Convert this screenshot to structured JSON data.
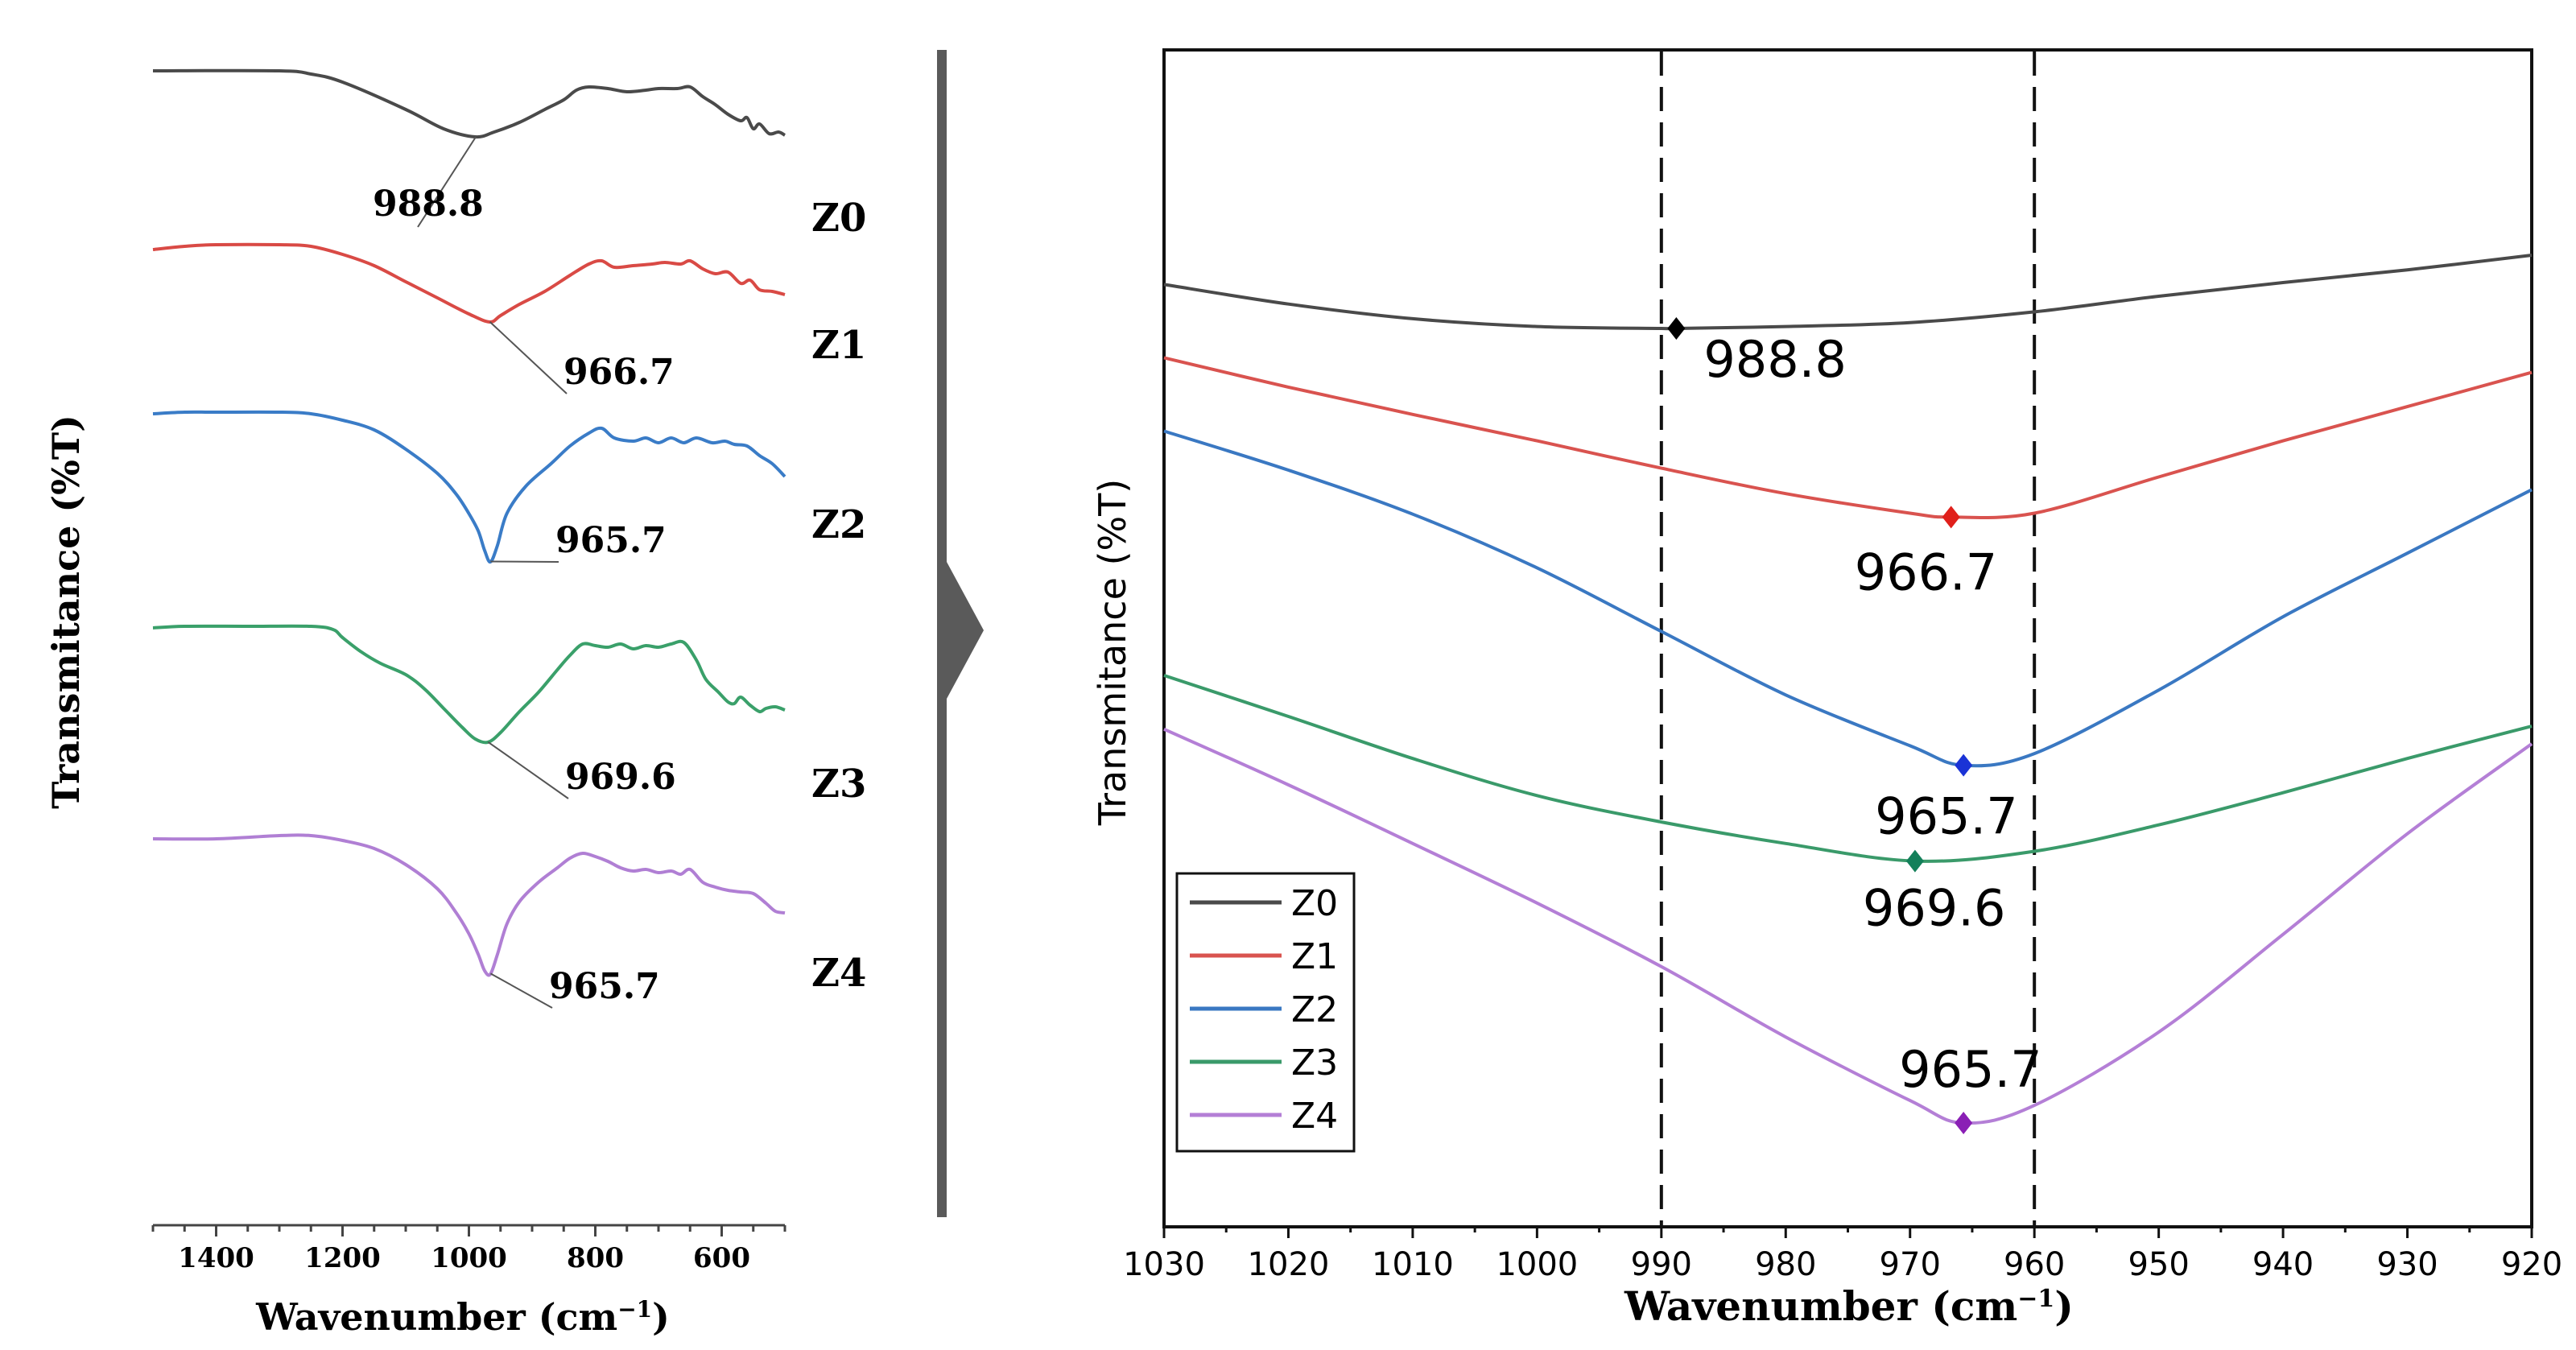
{
  "chart_data": [
    {
      "type": "line",
      "panel": "left",
      "xlabel": "Wavenumber (cm",
      "xlabel_sup": "−1",
      "xlabel_close": ")",
      "ylabel": "Transmitance (%T)",
      "xlim": [
        1500,
        500
      ],
      "x_reversed": true,
      "x_ticks": [
        1400,
        1200,
        1000,
        800,
        600
      ],
      "x_tick_labels": [
        "1400",
        "1200",
        "1000",
        "800",
        "600"
      ],
      "y_axis_values": "none",
      "series": [
        {
          "name": "Z0",
          "color": "#4a4a4a",
          "peak_label": "988.8",
          "peak_x": 988.8,
          "points": [
            [
              1500,
              0
            ],
            [
              1300,
              0
            ],
            [
              1250,
              -4
            ],
            [
              1200,
              -14
            ],
            [
              1100,
              -48
            ],
            [
              1040,
              -72
            ],
            [
              990,
              -82
            ],
            [
              960,
              -76
            ],
            [
              920,
              -64
            ],
            [
              880,
              -48
            ],
            [
              850,
              -36
            ],
            [
              830,
              -24
            ],
            [
              810,
              -20
            ],
            [
              780,
              -22
            ],
            [
              750,
              -26
            ],
            [
              720,
              -24
            ],
            [
              700,
              -22
            ],
            [
              670,
              -22
            ],
            [
              650,
              -20
            ],
            [
              630,
              -32
            ],
            [
              610,
              -42
            ],
            [
              590,
              -54
            ],
            [
              570,
              -62
            ],
            [
              560,
              -58
            ],
            [
              550,
              -72
            ],
            [
              540,
              -66
            ],
            [
              525,
              -78
            ],
            [
              510,
              -76
            ],
            [
              500,
              -80
            ]
          ]
        },
        {
          "name": "Z1",
          "color": "#d94a45",
          "peak_label": "966.7",
          "peak_x": 966.7,
          "points": [
            [
              1500,
              -2
            ],
            [
              1450,
              2
            ],
            [
              1400,
              4
            ],
            [
              1300,
              4
            ],
            [
              1250,
              2
            ],
            [
              1200,
              -8
            ],
            [
              1150,
              -22
            ],
            [
              1100,
              -42
            ],
            [
              1050,
              -62
            ],
            [
              1000,
              -82
            ],
            [
              967,
              -92
            ],
            [
              950,
              -84
            ],
            [
              920,
              -70
            ],
            [
              880,
              -54
            ],
            [
              840,
              -34
            ],
            [
              810,
              -20
            ],
            [
              790,
              -16
            ],
            [
              770,
              -24
            ],
            [
              740,
              -22
            ],
            [
              710,
              -20
            ],
            [
              690,
              -18
            ],
            [
              665,
              -20
            ],
            [
              650,
              -16
            ],
            [
              630,
              -26
            ],
            [
              610,
              -32
            ],
            [
              590,
              -30
            ],
            [
              570,
              -44
            ],
            [
              555,
              -40
            ],
            [
              540,
              -52
            ],
            [
              520,
              -54
            ],
            [
              500,
              -58
            ]
          ]
        },
        {
          "name": "Z2",
          "color": "#3a7cc7",
          "peak_label": "965.7",
          "peak_x": 965.7,
          "points": [
            [
              1500,
              0
            ],
            [
              1450,
              2
            ],
            [
              1400,
              2
            ],
            [
              1300,
              2
            ],
            [
              1250,
              0
            ],
            [
              1200,
              -8
            ],
            [
              1150,
              -20
            ],
            [
              1100,
              -44
            ],
            [
              1050,
              -74
            ],
            [
              1020,
              -100
            ],
            [
              1000,
              -124
            ],
            [
              985,
              -146
            ],
            [
              975,
              -170
            ],
            [
              966,
              -184
            ],
            [
              955,
              -164
            ],
            [
              940,
              -124
            ],
            [
              910,
              -90
            ],
            [
              870,
              -62
            ],
            [
              840,
              -40
            ],
            [
              810,
              -24
            ],
            [
              790,
              -18
            ],
            [
              770,
              -30
            ],
            [
              740,
              -34
            ],
            [
              720,
              -30
            ],
            [
              700,
              -36
            ],
            [
              680,
              -30
            ],
            [
              660,
              -36
            ],
            [
              640,
              -30
            ],
            [
              615,
              -36
            ],
            [
              595,
              -34
            ],
            [
              580,
              -38
            ],
            [
              560,
              -40
            ],
            [
              540,
              -52
            ],
            [
              520,
              -62
            ],
            [
              500,
              -78
            ]
          ]
        },
        {
          "name": "Z3",
          "color": "#3aa06a",
          "peak_label": "969.6",
          "peak_x": 969.6,
          "points": [
            [
              1500,
              0
            ],
            [
              1450,
              2
            ],
            [
              1350,
              2
            ],
            [
              1250,
              2
            ],
            [
              1215,
              -2
            ],
            [
              1200,
              -12
            ],
            [
              1170,
              -30
            ],
            [
              1140,
              -44
            ],
            [
              1100,
              -58
            ],
            [
              1070,
              -76
            ],
            [
              1040,
              -100
            ],
            [
              1010,
              -124
            ],
            [
              990,
              -138
            ],
            [
              970,
              -142
            ],
            [
              950,
              -130
            ],
            [
              920,
              -104
            ],
            [
              890,
              -80
            ],
            [
              860,
              -52
            ],
            [
              840,
              -34
            ],
            [
              820,
              -20
            ],
            [
              800,
              -22
            ],
            [
              780,
              -24
            ],
            [
              760,
              -20
            ],
            [
              740,
              -26
            ],
            [
              720,
              -22
            ],
            [
              700,
              -24
            ],
            [
              680,
              -20
            ],
            [
              660,
              -18
            ],
            [
              640,
              -40
            ],
            [
              625,
              -64
            ],
            [
              605,
              -80
            ],
            [
              590,
              -92
            ],
            [
              580,
              -94
            ],
            [
              570,
              -86
            ],
            [
              555,
              -96
            ],
            [
              540,
              -104
            ],
            [
              530,
              -100
            ],
            [
              515,
              -98
            ],
            [
              500,
              -102
            ]
          ]
        },
        {
          "name": "Z4",
          "color": "#b07fd4",
          "peak_label": "965.7",
          "peak_x": 965.7,
          "points": [
            [
              1500,
              0
            ],
            [
              1400,
              0
            ],
            [
              1300,
              4
            ],
            [
              1250,
              4
            ],
            [
              1200,
              -2
            ],
            [
              1150,
              -12
            ],
            [
              1100,
              -32
            ],
            [
              1050,
              -62
            ],
            [
              1020,
              -92
            ],
            [
              1000,
              -118
            ],
            [
              985,
              -144
            ],
            [
              975,
              -164
            ],
            [
              966,
              -168
            ],
            [
              955,
              -144
            ],
            [
              940,
              -106
            ],
            [
              920,
              -78
            ],
            [
              890,
              -54
            ],
            [
              860,
              -36
            ],
            [
              840,
              -24
            ],
            [
              820,
              -18
            ],
            [
              800,
              -22
            ],
            [
              780,
              -28
            ],
            [
              760,
              -36
            ],
            [
              740,
              -40
            ],
            [
              720,
              -38
            ],
            [
              700,
              -42
            ],
            [
              680,
              -40
            ],
            [
              665,
              -44
            ],
            [
              650,
              -38
            ],
            [
              630,
              -54
            ],
            [
              610,
              -60
            ],
            [
              590,
              -64
            ],
            [
              570,
              -66
            ],
            [
              550,
              -68
            ],
            [
              530,
              -80
            ],
            [
              515,
              -90
            ],
            [
              500,
              -92
            ]
          ]
        }
      ]
    },
    {
      "type": "line",
      "panel": "right",
      "xlabel": "Wavenumber (cm",
      "xlabel_sup": "−1",
      "xlabel_close": ")",
      "ylabel": "Transmitance (%T)",
      "xlim": [
        1030,
        920
      ],
      "x_reversed": true,
      "x_ticks": [
        1030,
        1020,
        1010,
        1000,
        990,
        980,
        970,
        960,
        950,
        940,
        930,
        920
      ],
      "x_tick_labels": [
        "1030",
        "1020",
        "1010",
        "1000",
        "990",
        "980",
        "970",
        "960",
        "950",
        "940",
        "930",
        "920"
      ],
      "y_axis_values": "none",
      "vertical_dashed_lines": [
        990,
        960
      ],
      "legend": {
        "position": "bottom-left",
        "entries": [
          "Z0",
          "Z1",
          "Z2",
          "Z3",
          "Z4"
        ]
      },
      "series": [
        {
          "name": "Z0",
          "color": "#4a4a4a",
          "marker_color": "#000000",
          "peak_label": "988.8",
          "peak_x": 988.8,
          "points": [
            [
              1030,
              6.2
            ],
            [
              1020,
              6.0
            ],
            [
              1010,
              5.85
            ],
            [
              1000,
              5.77
            ],
            [
              990,
              5.75
            ],
            [
              988.8,
              5.75
            ],
            [
              980,
              5.77
            ],
            [
              970,
              5.81
            ],
            [
              960,
              5.92
            ],
            [
              950,
              6.08
            ],
            [
              940,
              6.22
            ],
            [
              930,
              6.35
            ],
            [
              920,
              6.5
            ]
          ]
        },
        {
          "name": "Z1",
          "color": "#d9534f",
          "marker_color": "#e0201b",
          "peak_label": "966.7",
          "peak_x": 966.7,
          "points": [
            [
              1030,
              5.45
            ],
            [
              1020,
              5.15
            ],
            [
              1010,
              4.87
            ],
            [
              1000,
              4.6
            ],
            [
              990,
              4.32
            ],
            [
              980,
              4.06
            ],
            [
              970,
              3.86
            ],
            [
              966.7,
              3.82
            ],
            [
              960,
              3.86
            ],
            [
              950,
              4.23
            ],
            [
              940,
              4.6
            ],
            [
              930,
              4.95
            ],
            [
              920,
              5.3
            ]
          ]
        },
        {
          "name": "Z2",
          "color": "#3a78c2",
          "marker_color": "#1a33d6",
          "peak_label": "965.7",
          "peak_x": 965.7,
          "points": [
            [
              1030,
              4.7
            ],
            [
              1020,
              4.3
            ],
            [
              1010,
              3.85
            ],
            [
              1000,
              3.3
            ],
            [
              990,
              2.65
            ],
            [
              980,
              2.0
            ],
            [
              970,
              1.48
            ],
            [
              965.7,
              1.28
            ],
            [
              960,
              1.4
            ],
            [
              950,
              2.05
            ],
            [
              940,
              2.8
            ],
            [
              930,
              3.45
            ],
            [
              920,
              4.1
            ]
          ]
        },
        {
          "name": "Z3",
          "color": "#3a9a6a",
          "marker_color": "#14805a",
          "peak_label": "969.6",
          "peak_x": 969.6,
          "points": [
            [
              1030,
              2.2
            ],
            [
              1020,
              1.78
            ],
            [
              1010,
              1.35
            ],
            [
              1000,
              0.97
            ],
            [
              990,
              0.7
            ],
            [
              980,
              0.48
            ],
            [
              969.6,
              0.3
            ],
            [
              960,
              0.4
            ],
            [
              950,
              0.67
            ],
            [
              940,
              1.0
            ],
            [
              930,
              1.35
            ],
            [
              920,
              1.68
            ]
          ]
        },
        {
          "name": "Z4",
          "color": "#b47fd6",
          "marker_color": "#8a1fb5",
          "peak_label": "965.7",
          "peak_x": 965.7,
          "points": [
            [
              1030,
              1.65
            ],
            [
              1020,
              1.08
            ],
            [
              1010,
              0.48
            ],
            [
              1000,
              -0.13
            ],
            [
              990,
              -0.78
            ],
            [
              980,
              -1.5
            ],
            [
              970,
              -2.15
            ],
            [
              965.7,
              -2.38
            ],
            [
              960,
              -2.2
            ],
            [
              950,
              -1.45
            ],
            [
              940,
              -0.45
            ],
            [
              930,
              0.58
            ],
            [
              920,
              1.5
            ]
          ]
        }
      ]
    }
  ]
}
